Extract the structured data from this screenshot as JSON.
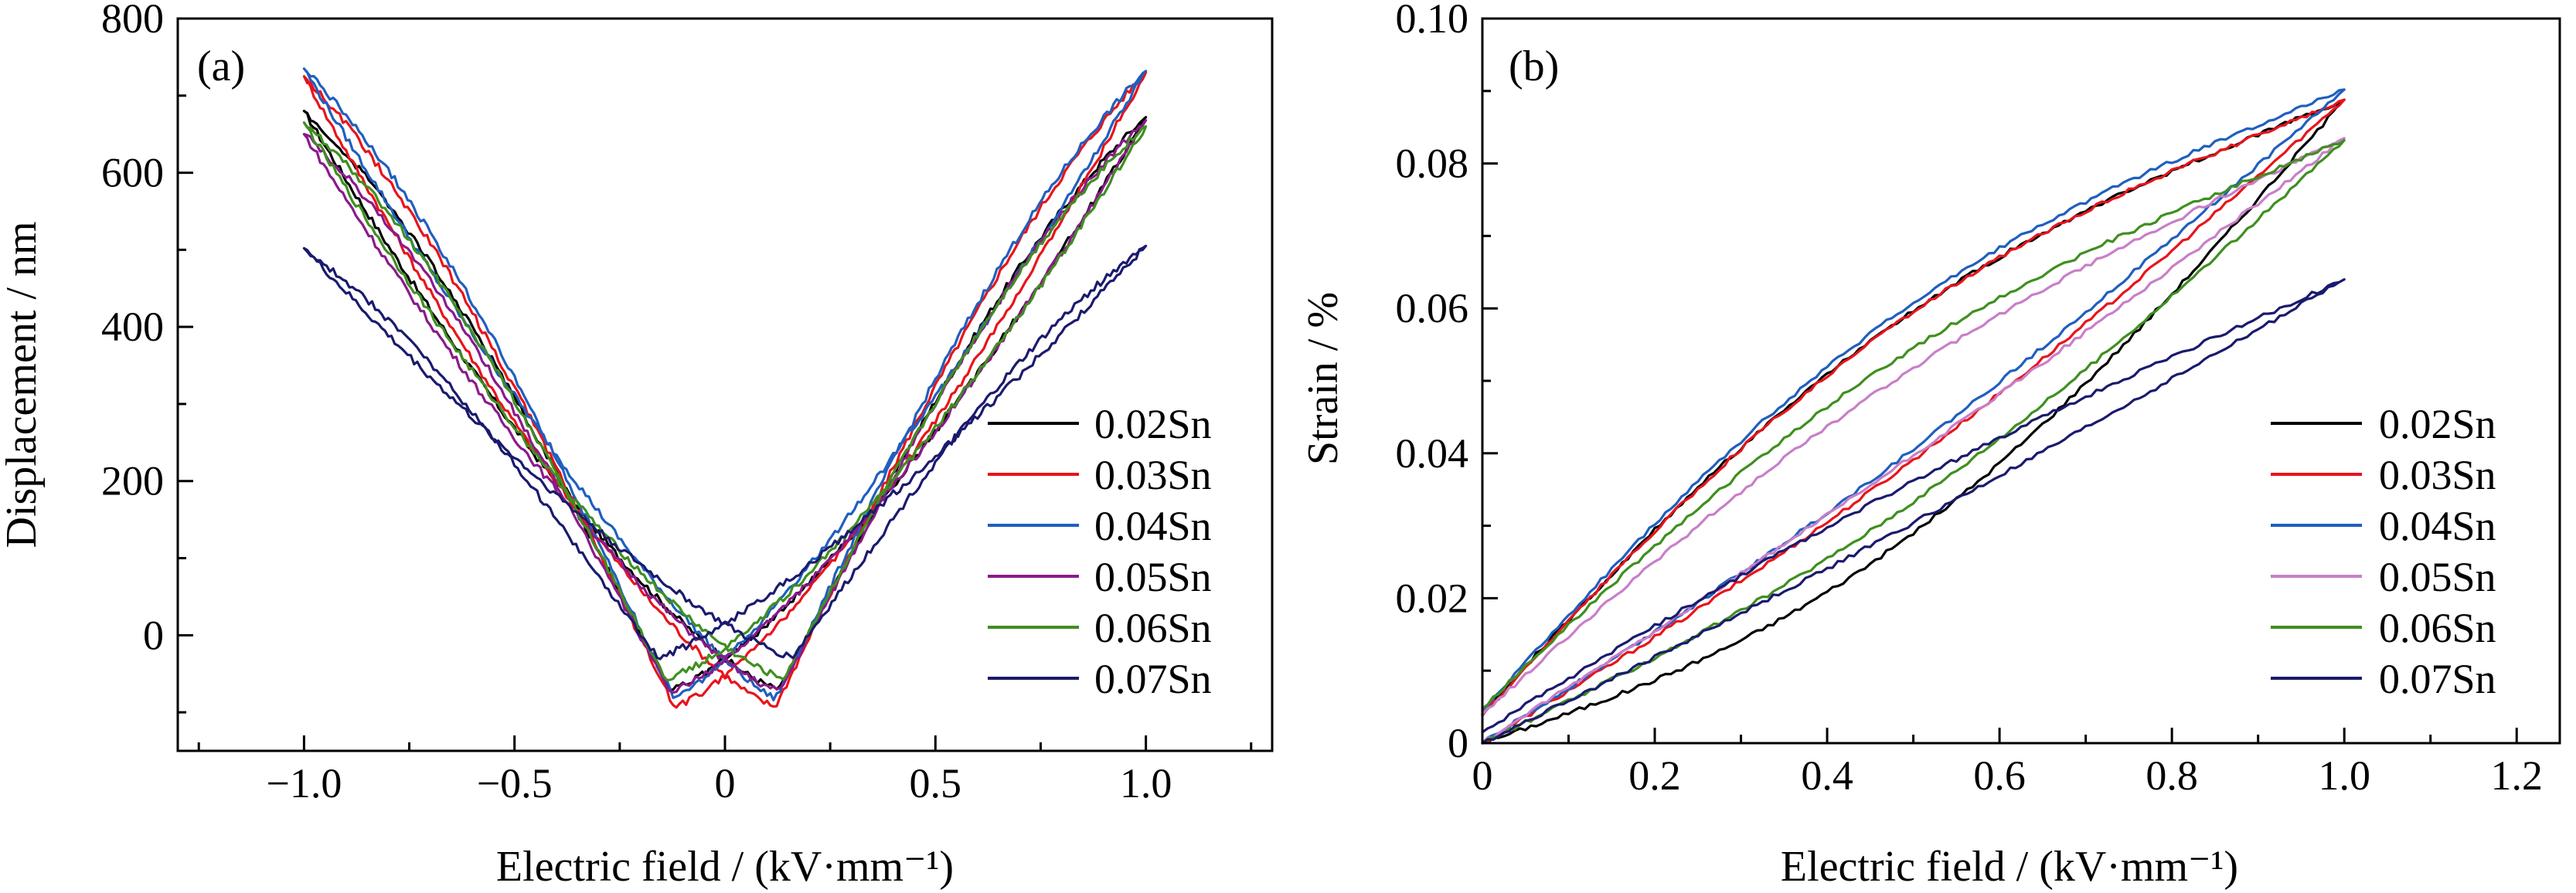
{
  "chart_data": [
    {
      "panel": "(a)",
      "type": "line",
      "xlabel": "Electric field / (kV·mm⁻¹)",
      "ylabel": "Displacement / nm",
      "xlim": [
        -1.3,
        1.3
      ],
      "ylim": [
        -150,
        800
      ],
      "x_major_ticks": [
        -1.0,
        -0.5,
        0,
        0.5,
        1.0
      ],
      "x_tick_labels": [
        "−1.0",
        "−0.5",
        "0",
        "0.5",
        "1.0"
      ],
      "x_minor_ticks": [
        -1.25,
        -0.75,
        -0.25,
        0.25,
        0.75,
        1.25
      ],
      "y_major_ticks": [
        0,
        200,
        400,
        600,
        800
      ],
      "y_tick_labels": [
        "0",
        "200",
        "400",
        "600",
        "800"
      ],
      "y_minor_ticks": [
        -100,
        100,
        300,
        500,
        700
      ],
      "legend_position": "right",
      "series": [
        {
          "name": "0.02Sn",
          "color": "#000000",
          "ymax_neg": 680,
          "ymax_pos": 672,
          "ymin": -70,
          "e0": 0.13,
          "q": 0.58,
          "zero_up": 40,
          "zero_down": -5
        },
        {
          "name": "0.03Sn",
          "color": "#e8141c",
          "ymax_neg": 725,
          "ymax_pos": 730,
          "ymin": -92,
          "e0": 0.12,
          "q": 0.62,
          "zero_up": 30,
          "zero_down": 10
        },
        {
          "name": "0.04Sn",
          "color": "#1f5fbf",
          "ymax_neg": 735,
          "ymax_pos": 732,
          "ymin": -82,
          "e0": 0.12,
          "q": 0.45,
          "zero_up": 28,
          "zero_down": 15
        },
        {
          "name": "0.05Sn",
          "color": "#8b1a8b",
          "ymax_neg": 650,
          "ymax_pos": 668,
          "ymin": -72,
          "e0": 0.13,
          "q": 0.58,
          "zero_up": 35,
          "zero_down": 0
        },
        {
          "name": "0.06Sn",
          "color": "#3f8f1f",
          "ymax_neg": 665,
          "ymax_pos": 660,
          "ymin": -55,
          "e0": 0.14,
          "q": 0.58,
          "zero_up": 45,
          "zero_down": -10
        },
        {
          "name": "0.07Sn",
          "color": "#1a1a6e",
          "ymax_neg": 502,
          "ymax_pos": 505,
          "ymin": -28,
          "e0": 0.16,
          "q": 0.55,
          "zero_up": 10,
          "zero_down": 18
        }
      ]
    },
    {
      "panel": "(b)",
      "type": "line",
      "xlabel": "Electric field / (kV·mm⁻¹)",
      "ylabel": "Strain / %",
      "xlim": [
        0,
        1.25
      ],
      "ylim": [
        0,
        0.1
      ],
      "x_major_ticks": [
        0,
        0.2,
        0.4,
        0.6,
        0.8,
        1.0,
        1.2
      ],
      "x_tick_labels": [
        "0",
        "0.2",
        "0.4",
        "0.6",
        "0.8",
        "1.0",
        "1.2"
      ],
      "x_minor_ticks": [
        0.1,
        0.3,
        0.5,
        0.7,
        0.9,
        1.1
      ],
      "y_major_ticks": [
        0,
        0.02,
        0.04,
        0.06,
        0.08,
        0.1
      ],
      "y_tick_labels": [
        "0",
        "0.02",
        "0.04",
        "0.06",
        "0.08",
        "0.10"
      ],
      "y_minor_ticks": [
        0.01,
        0.03,
        0.05,
        0.07,
        0.09
      ],
      "legend_position": "bottom-right",
      "series": [
        {
          "name": "0.02Sn",
          "color": "#000000",
          "ymax": 0.0888,
          "y0_end": 0.004,
          "up_curv": 0.35,
          "down_curv": 0.85
        },
        {
          "name": "0.03Sn",
          "color": "#e8141c",
          "ymax": 0.0888,
          "y0_end": 0.0038,
          "up_curv": 0.12,
          "down_curv": 0.85
        },
        {
          "name": "0.04Sn",
          "color": "#1f5fbf",
          "ymax": 0.0902,
          "y0_end": 0.0045,
          "up_curv": 0.1,
          "down_curv": 0.85
        },
        {
          "name": "0.05Sn",
          "color": "#c87fc8",
          "ymax": 0.0835,
          "y0_end": 0.004,
          "up_curv": 0.05,
          "down_curv": 0.55
        },
        {
          "name": "0.06Sn",
          "color": "#3f8f1f",
          "ymax": 0.0832,
          "y0_end": 0.0048,
          "up_curv": 0.2,
          "down_curv": 0.72
        },
        {
          "name": "0.07Sn",
          "color": "#1a1a6e",
          "ymax": 0.064,
          "y0_end": 0.0015,
          "up_curv": 0.05,
          "down_curv": 0.3
        }
      ]
    }
  ]
}
